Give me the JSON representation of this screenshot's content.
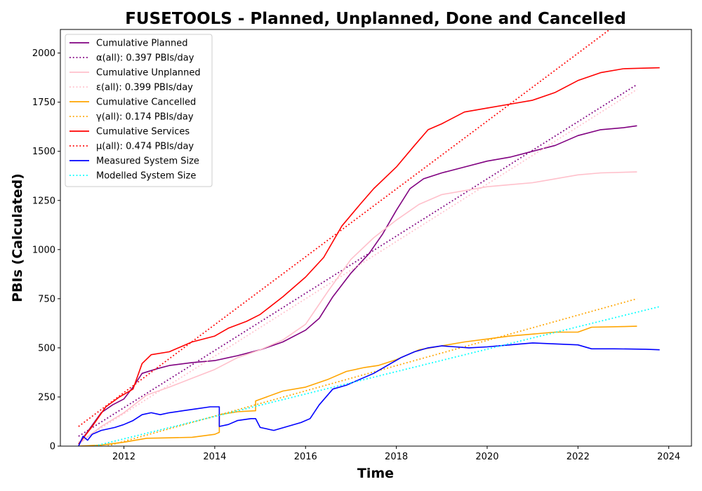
{
  "chart_data": {
    "type": "line",
    "title": "FUSETOOLS - Planned, Unplanned, Done  and Cancelled",
    "xlabel": "Time",
    "ylabel": "PBIs (Calculated)",
    "xlim": [
      2010.6,
      2024.5
    ],
    "ylim": [
      0,
      2120
    ],
    "xticks": [
      2012,
      2014,
      2016,
      2018,
      2020,
      2022,
      2024
    ],
    "yticks": [
      0,
      250,
      500,
      750,
      1000,
      1250,
      1500,
      1750,
      2000
    ],
    "grid": false,
    "legend_position": "upper left",
    "series": [
      {
        "name": "Cumulative Planned",
        "color": "#800080",
        "style": "solid",
        "points": [
          [
            2011.0,
            10
          ],
          [
            2011.25,
            90
          ],
          [
            2011.5,
            170
          ],
          [
            2011.75,
            210
          ],
          [
            2012.0,
            240
          ],
          [
            2012.2,
            300
          ],
          [
            2012.4,
            370
          ],
          [
            2012.75,
            395
          ],
          [
            2013.0,
            410
          ],
          [
            2013.5,
            425
          ],
          [
            2014.0,
            435
          ],
          [
            2014.5,
            460
          ],
          [
            2015.0,
            490
          ],
          [
            2015.5,
            530
          ],
          [
            2016.0,
            590
          ],
          [
            2016.3,
            650
          ],
          [
            2016.6,
            760
          ],
          [
            2017.0,
            880
          ],
          [
            2017.4,
            980
          ],
          [
            2017.7,
            1080
          ],
          [
            2018.0,
            1200
          ],
          [
            2018.3,
            1310
          ],
          [
            2018.6,
            1360
          ],
          [
            2019.0,
            1390
          ],
          [
            2019.5,
            1420
          ],
          [
            2020.0,
            1450
          ],
          [
            2020.5,
            1470
          ],
          [
            2021.0,
            1500
          ],
          [
            2021.5,
            1530
          ],
          [
            2022.0,
            1580
          ],
          [
            2022.5,
            1610
          ],
          [
            2023.0,
            1620
          ],
          [
            2023.3,
            1630
          ]
        ]
      },
      {
        "name": "α(all): 0.397 PBIs/day",
        "color": "#800080",
        "style": "dotted",
        "points": [
          [
            2011.0,
            50
          ],
          [
            2023.3,
            1840
          ]
        ]
      },
      {
        "name": "Cumulative Unplanned",
        "color": "#ffc0cb",
        "style": "solid",
        "points": [
          [
            2011.0,
            10
          ],
          [
            2011.5,
            100
          ],
          [
            2012.0,
            170
          ],
          [
            2012.5,
            260
          ],
          [
            2013.0,
            300
          ],
          [
            2013.5,
            345
          ],
          [
            2014.0,
            390
          ],
          [
            2014.5,
            450
          ],
          [
            2015.0,
            490
          ],
          [
            2015.5,
            540
          ],
          [
            2016.0,
            620
          ],
          [
            2016.5,
            790
          ],
          [
            2017.0,
            950
          ],
          [
            2017.5,
            1060
          ],
          [
            2018.0,
            1150
          ],
          [
            2018.5,
            1230
          ],
          [
            2019.0,
            1280
          ],
          [
            2019.5,
            1300
          ],
          [
            2020.0,
            1320
          ],
          [
            2020.5,
            1330
          ],
          [
            2021.0,
            1340
          ],
          [
            2021.5,
            1360
          ],
          [
            2022.0,
            1380
          ],
          [
            2022.5,
            1390
          ],
          [
            2023.3,
            1395
          ]
        ]
      },
      {
        "name": "ε(all): 0.399 PBIs/day",
        "color": "#ffc0cb",
        "style": "dotted",
        "points": [
          [
            2011.0,
            20
          ],
          [
            2023.3,
            1815
          ]
        ]
      },
      {
        "name": "Cumulative Cancelled",
        "color": "#ffa500",
        "style": "solid",
        "points": [
          [
            2011.0,
            0
          ],
          [
            2011.5,
            5
          ],
          [
            2012.0,
            20
          ],
          [
            2012.5,
            40
          ],
          [
            2013.0,
            42
          ],
          [
            2013.5,
            45
          ],
          [
            2014.0,
            60
          ],
          [
            2014.1,
            70
          ],
          [
            2014.1,
            160
          ],
          [
            2014.5,
            175
          ],
          [
            2014.9,
            180
          ],
          [
            2014.9,
            230
          ],
          [
            2015.5,
            280
          ],
          [
            2016.0,
            300
          ],
          [
            2016.5,
            340
          ],
          [
            2016.9,
            380
          ],
          [
            2017.3,
            400
          ],
          [
            2017.6,
            410
          ],
          [
            2018.0,
            440
          ],
          [
            2018.5,
            490
          ],
          [
            2019.0,
            510
          ],
          [
            2019.5,
            530
          ],
          [
            2020.0,
            545
          ],
          [
            2020.5,
            560
          ],
          [
            2021.0,
            570
          ],
          [
            2021.5,
            580
          ],
          [
            2022.0,
            580
          ],
          [
            2022.3,
            605
          ],
          [
            2023.0,
            608
          ],
          [
            2023.3,
            610
          ]
        ]
      },
      {
        "name": "γ(all): 0.174 PBIs/day",
        "color": "#ffa500",
        "style": "dotted",
        "points": [
          [
            2011.0,
            -40
          ],
          [
            2023.3,
            750
          ]
        ]
      },
      {
        "name": "Cumulative Services",
        "color": "#ff0000",
        "style": "solid",
        "points": [
          [
            2011.0,
            10
          ],
          [
            2011.3,
            100
          ],
          [
            2011.6,
            200
          ],
          [
            2011.9,
            250
          ],
          [
            2012.2,
            290
          ],
          [
            2012.4,
            420
          ],
          [
            2012.6,
            465
          ],
          [
            2013.0,
            480
          ],
          [
            2013.5,
            530
          ],
          [
            2014.0,
            560
          ],
          [
            2014.3,
            600
          ],
          [
            2014.7,
            635
          ],
          [
            2015.0,
            670
          ],
          [
            2015.5,
            760
          ],
          [
            2016.0,
            860
          ],
          [
            2016.4,
            960
          ],
          [
            2016.8,
            1120
          ],
          [
            2017.2,
            1230
          ],
          [
            2017.5,
            1310
          ],
          [
            2018.0,
            1420
          ],
          [
            2018.4,
            1530
          ],
          [
            2018.7,
            1610
          ],
          [
            2019.0,
            1640
          ],
          [
            2019.5,
            1700
          ],
          [
            2020.0,
            1720
          ],
          [
            2020.5,
            1740
          ],
          [
            2021.0,
            1760
          ],
          [
            2021.5,
            1800
          ],
          [
            2022.0,
            1860
          ],
          [
            2022.5,
            1900
          ],
          [
            2023.0,
            1920
          ],
          [
            2023.8,
            1925
          ]
        ]
      },
      {
        "name": "μ(all): 0.474 PBIs/day",
        "color": "#ff0000",
        "style": "dotted",
        "points": [
          [
            2011.0,
            100
          ],
          [
            2022.7,
            2120
          ]
        ]
      },
      {
        "name": "Measured System Size",
        "color": "#0000ff",
        "style": "solid",
        "points": [
          [
            2011.0,
            0
          ],
          [
            2011.1,
            50
          ],
          [
            2011.2,
            30
          ],
          [
            2011.3,
            60
          ],
          [
            2011.5,
            80
          ],
          [
            2011.8,
            95
          ],
          [
            2012.0,
            110
          ],
          [
            2012.2,
            130
          ],
          [
            2012.4,
            160
          ],
          [
            2012.6,
            170
          ],
          [
            2012.8,
            160
          ],
          [
            2013.0,
            170
          ],
          [
            2013.3,
            180
          ],
          [
            2013.6,
            190
          ],
          [
            2013.9,
            200
          ],
          [
            2014.1,
            200
          ],
          [
            2014.1,
            100
          ],
          [
            2014.3,
            110
          ],
          [
            2014.5,
            130
          ],
          [
            2014.8,
            140
          ],
          [
            2014.9,
            140
          ],
          [
            2015.0,
            95
          ],
          [
            2015.3,
            80
          ],
          [
            2015.6,
            100
          ],
          [
            2015.9,
            120
          ],
          [
            2016.1,
            140
          ],
          [
            2016.3,
            210
          ],
          [
            2016.6,
            290
          ],
          [
            2016.9,
            310
          ],
          [
            2017.2,
            340
          ],
          [
            2017.5,
            370
          ],
          [
            2017.8,
            410
          ],
          [
            2018.1,
            450
          ],
          [
            2018.4,
            480
          ],
          [
            2018.7,
            500
          ],
          [
            2019.0,
            510
          ],
          [
            2019.3,
            505
          ],
          [
            2019.6,
            500
          ],
          [
            2020.0,
            505
          ],
          [
            2020.5,
            515
          ],
          [
            2021.0,
            525
          ],
          [
            2021.5,
            520
          ],
          [
            2022.0,
            515
          ],
          [
            2022.3,
            495
          ],
          [
            2022.8,
            495
          ],
          [
            2023.5,
            493
          ],
          [
            2023.8,
            490
          ]
        ]
      },
      {
        "name": "Modelled System Size",
        "color": "#00ffff",
        "style": "dotted",
        "points": [
          [
            2011.0,
            -20
          ],
          [
            2023.8,
            710
          ]
        ]
      }
    ]
  }
}
